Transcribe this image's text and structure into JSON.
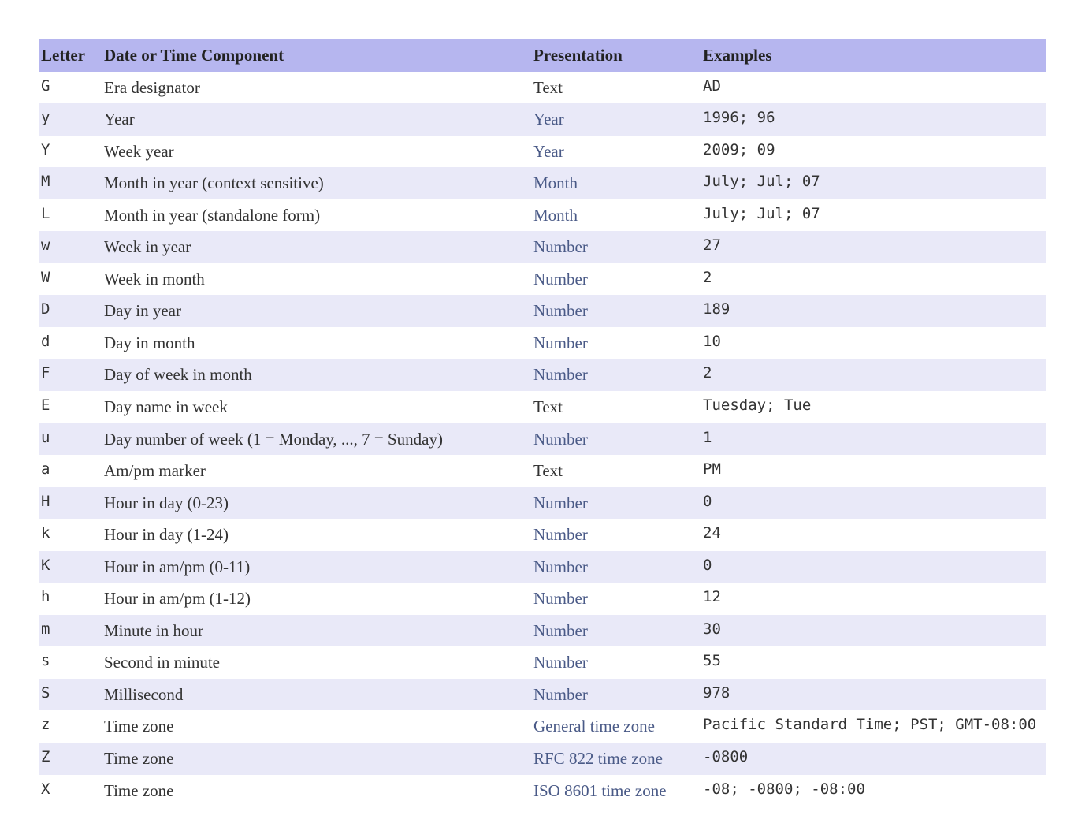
{
  "table": {
    "header_bg": "#b6b6ef",
    "row_even_bg": "#e9e9f8",
    "row_odd_bg": "#ffffff",
    "link_color": "#4a5a87",
    "text_color": "#333333",
    "mono_font": "Menlo, Consolas, DejaVu Sans Mono, monospace",
    "serif_font": "Georgia, Times New Roman, serif",
    "columns": [
      "Letter",
      "Date or Time Component",
      "Presentation",
      "Examples"
    ],
    "rows": [
      {
        "letter": "G",
        "component": "Era designator",
        "presentation": "Text",
        "presentation_link": false,
        "example": "AD"
      },
      {
        "letter": "y",
        "component": "Year",
        "presentation": "Year",
        "presentation_link": true,
        "example": "1996; 96"
      },
      {
        "letter": "Y",
        "component": "Week year",
        "presentation": "Year",
        "presentation_link": true,
        "example": "2009; 09"
      },
      {
        "letter": "M",
        "component": "Month in year (context sensitive)",
        "presentation": "Month",
        "presentation_link": true,
        "example": "July; Jul; 07"
      },
      {
        "letter": "L",
        "component": "Month in year (standalone form)",
        "presentation": "Month",
        "presentation_link": true,
        "example": "July; Jul; 07"
      },
      {
        "letter": "w",
        "component": "Week in year",
        "presentation": "Number",
        "presentation_link": true,
        "example": "27"
      },
      {
        "letter": "W",
        "component": "Week in month",
        "presentation": "Number",
        "presentation_link": true,
        "example": "2"
      },
      {
        "letter": "D",
        "component": "Day in year",
        "presentation": "Number",
        "presentation_link": true,
        "example": "189"
      },
      {
        "letter": "d",
        "component": "Day in month",
        "presentation": "Number",
        "presentation_link": true,
        "example": "10"
      },
      {
        "letter": "F",
        "component": "Day of week in month",
        "presentation": "Number",
        "presentation_link": true,
        "example": "2"
      },
      {
        "letter": "E",
        "component": "Day name in week",
        "presentation": "Text",
        "presentation_link": false,
        "example": "Tuesday; Tue"
      },
      {
        "letter": "u",
        "component": "Day number of week (1 = Monday, ..., 7 = Sunday)",
        "presentation": "Number",
        "presentation_link": true,
        "example": "1"
      },
      {
        "letter": "a",
        "component": "Am/pm marker",
        "presentation": "Text",
        "presentation_link": false,
        "example": "PM"
      },
      {
        "letter": "H",
        "component": "Hour in day (0-23)",
        "presentation": "Number",
        "presentation_link": true,
        "example": "0"
      },
      {
        "letter": "k",
        "component": "Hour in day (1-24)",
        "presentation": "Number",
        "presentation_link": true,
        "example": "24"
      },
      {
        "letter": "K",
        "component": "Hour in am/pm (0-11)",
        "presentation": "Number",
        "presentation_link": true,
        "example": "0"
      },
      {
        "letter": "h",
        "component": "Hour in am/pm (1-12)",
        "presentation": "Number",
        "presentation_link": true,
        "example": "12"
      },
      {
        "letter": "m",
        "component": "Minute in hour",
        "presentation": "Number",
        "presentation_link": true,
        "example": "30"
      },
      {
        "letter": "s",
        "component": "Second in minute",
        "presentation": "Number",
        "presentation_link": true,
        "example": "55"
      },
      {
        "letter": "S",
        "component": "Millisecond",
        "presentation": "Number",
        "presentation_link": true,
        "example": "978"
      },
      {
        "letter": "z",
        "component": "Time zone",
        "presentation": "General time zone",
        "presentation_link": true,
        "example": "Pacific Standard Time; PST; GMT-08:00"
      },
      {
        "letter": "Z",
        "component": "Time zone",
        "presentation": "RFC 822 time zone",
        "presentation_link": true,
        "example": "-0800"
      },
      {
        "letter": "X",
        "component": "Time zone",
        "presentation": "ISO 8601 time zone",
        "presentation_link": true,
        "example": "-08; -0800; -08:00"
      }
    ]
  }
}
